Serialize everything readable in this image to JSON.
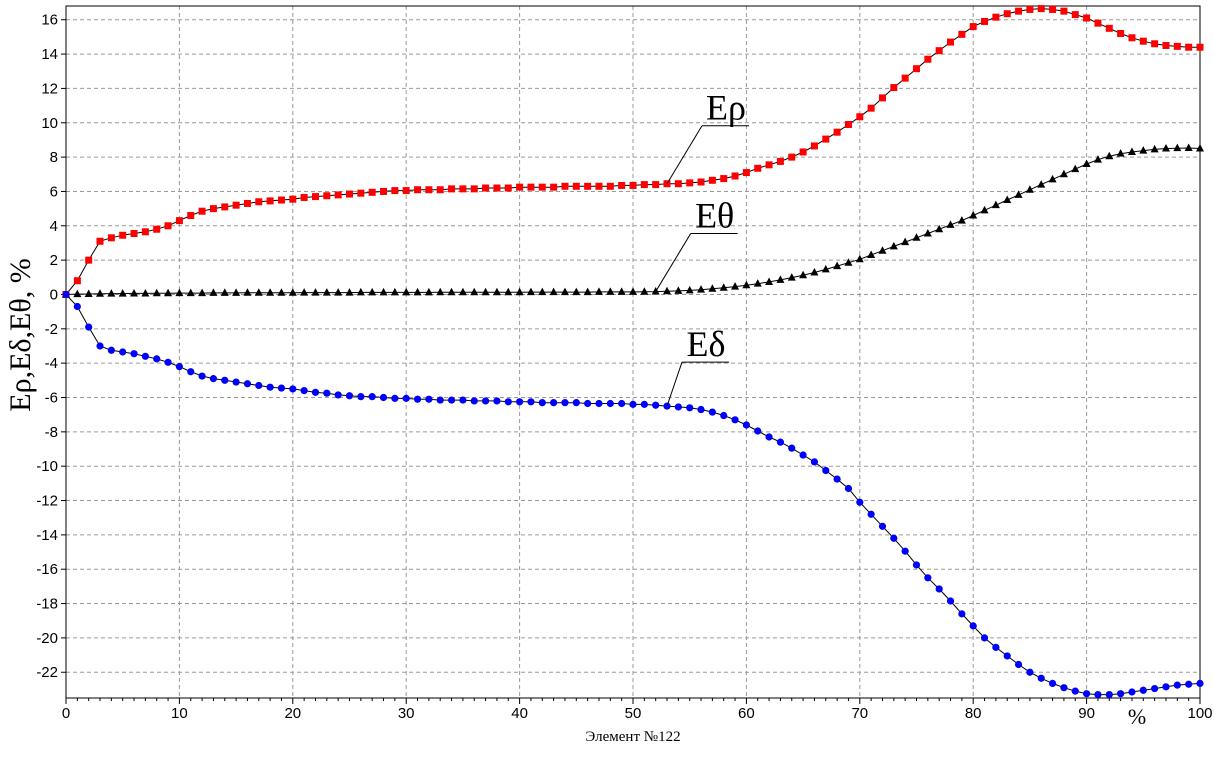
{
  "chart_data": {
    "type": "line",
    "xlabel": "Элемент №122",
    "ylabel": "Eρ,Eδ,Eθ, %",
    "x_unit_label": "%",
    "xlim": [
      0,
      100
    ],
    "ylim": [
      -23.5,
      16.8
    ],
    "xticks": [
      0,
      10,
      20,
      30,
      40,
      50,
      60,
      70,
      80,
      90,
      100
    ],
    "yticks": [
      -22,
      -20,
      -18,
      -16,
      -14,
      -12,
      -10,
      -8,
      -6,
      -4,
      -2,
      0,
      2,
      4,
      6,
      8,
      10,
      12,
      14,
      16
    ],
    "grid": true,
    "series": [
      {
        "name": "Eρ",
        "color": "#ff0000",
        "marker": "square",
        "x": [
          0,
          1,
          2,
          3,
          4,
          5,
          6,
          7,
          8,
          9,
          10,
          11,
          12,
          13,
          14,
          15,
          16,
          17,
          18,
          19,
          20,
          21,
          22,
          23,
          24,
          25,
          26,
          27,
          28,
          29,
          30,
          31,
          32,
          33,
          34,
          35,
          36,
          37,
          38,
          39,
          40,
          41,
          42,
          43,
          44,
          45,
          46,
          47,
          48,
          49,
          50,
          51,
          52,
          53,
          54,
          55,
          56,
          57,
          58,
          59,
          60,
          61,
          62,
          63,
          64,
          65,
          66,
          67,
          68,
          69,
          70,
          71,
          72,
          73,
          74,
          75,
          76,
          77,
          78,
          79,
          80,
          81,
          82,
          83,
          84,
          85,
          86,
          87,
          88,
          89,
          90,
          91,
          92,
          93,
          94,
          95,
          96,
          97,
          98,
          99,
          100
        ],
        "values": [
          0,
          0.8,
          2.0,
          3.1,
          3.3,
          3.45,
          3.55,
          3.65,
          3.8,
          4.0,
          4.3,
          4.6,
          4.85,
          5.0,
          5.1,
          5.2,
          5.3,
          5.4,
          5.45,
          5.5,
          5.55,
          5.65,
          5.7,
          5.75,
          5.8,
          5.85,
          5.9,
          5.95,
          6.0,
          6.05,
          6.05,
          6.1,
          6.1,
          6.1,
          6.15,
          6.15,
          6.15,
          6.2,
          6.2,
          6.2,
          6.25,
          6.25,
          6.25,
          6.25,
          6.3,
          6.3,
          6.3,
          6.3,
          6.3,
          6.35,
          6.35,
          6.4,
          6.4,
          6.45,
          6.45,
          6.5,
          6.55,
          6.65,
          6.75,
          6.9,
          7.1,
          7.35,
          7.55,
          7.75,
          8.0,
          8.3,
          8.65,
          9.05,
          9.45,
          9.9,
          10.35,
          10.85,
          11.45,
          12.05,
          12.6,
          13.15,
          13.7,
          14.2,
          14.7,
          15.15,
          15.6,
          15.9,
          16.15,
          16.35,
          16.5,
          16.6,
          16.65,
          16.6,
          16.5,
          16.3,
          16.1,
          15.8,
          15.5,
          15.2,
          14.95,
          14.75,
          14.6,
          14.5,
          14.45,
          14.4,
          14.4
        ]
      },
      {
        "name": "Eθ",
        "color": "#000000",
        "marker": "triangle",
        "x": [
          0,
          1,
          2,
          3,
          4,
          5,
          6,
          7,
          8,
          9,
          10,
          11,
          12,
          13,
          14,
          15,
          16,
          17,
          18,
          19,
          20,
          21,
          22,
          23,
          24,
          25,
          26,
          27,
          28,
          29,
          30,
          31,
          32,
          33,
          34,
          35,
          36,
          37,
          38,
          39,
          40,
          41,
          42,
          43,
          44,
          45,
          46,
          47,
          48,
          49,
          50,
          51,
          52,
          53,
          54,
          55,
          56,
          57,
          58,
          59,
          60,
          61,
          62,
          63,
          64,
          65,
          66,
          67,
          68,
          69,
          70,
          71,
          72,
          73,
          74,
          75,
          76,
          77,
          78,
          79,
          80,
          81,
          82,
          83,
          84,
          85,
          86,
          87,
          88,
          89,
          90,
          91,
          92,
          93,
          94,
          95,
          96,
          97,
          98,
          99,
          100
        ],
        "values": [
          0,
          0.02,
          0.03,
          0.04,
          0.05,
          0.05,
          0.06,
          0.06,
          0.07,
          0.07,
          0.08,
          0.08,
          0.08,
          0.09,
          0.09,
          0.09,
          0.1,
          0.1,
          0.1,
          0.1,
          0.1,
          0.11,
          0.11,
          0.11,
          0.11,
          0.11,
          0.12,
          0.12,
          0.12,
          0.12,
          0.12,
          0.12,
          0.12,
          0.13,
          0.13,
          0.13,
          0.13,
          0.13,
          0.13,
          0.13,
          0.13,
          0.14,
          0.14,
          0.14,
          0.14,
          0.14,
          0.14,
          0.15,
          0.15,
          0.15,
          0.15,
          0.16,
          0.17,
          0.19,
          0.21,
          0.24,
          0.28,
          0.33,
          0.39,
          0.46,
          0.54,
          0.63,
          0.73,
          0.85,
          0.98,
          1.12,
          1.28,
          1.46,
          1.65,
          1.85,
          2.05,
          2.3,
          2.55,
          2.8,
          3.05,
          3.3,
          3.55,
          3.8,
          4.05,
          4.3,
          4.6,
          4.9,
          5.2,
          5.5,
          5.8,
          6.1,
          6.4,
          6.7,
          7.0,
          7.3,
          7.6,
          7.85,
          8.05,
          8.2,
          8.3,
          8.38,
          8.45,
          8.5,
          8.52,
          8.53,
          8.5
        ]
      },
      {
        "name": "Eδ",
        "color": "#0000ff",
        "marker": "circle",
        "x": [
          0,
          1,
          2,
          3,
          4,
          5,
          6,
          7,
          8,
          9,
          10,
          11,
          12,
          13,
          14,
          15,
          16,
          17,
          18,
          19,
          20,
          21,
          22,
          23,
          24,
          25,
          26,
          27,
          28,
          29,
          30,
          31,
          32,
          33,
          34,
          35,
          36,
          37,
          38,
          39,
          40,
          41,
          42,
          43,
          44,
          45,
          46,
          47,
          48,
          49,
          50,
          51,
          52,
          53,
          54,
          55,
          56,
          57,
          58,
          59,
          60,
          61,
          62,
          63,
          64,
          65,
          66,
          67,
          68,
          69,
          70,
          71,
          72,
          73,
          74,
          75,
          76,
          77,
          78,
          79,
          80,
          81,
          82,
          83,
          84,
          85,
          86,
          87,
          88,
          89,
          90,
          91,
          92,
          93,
          94,
          95,
          96,
          97,
          98,
          99,
          100
        ],
        "values": [
          0,
          -0.7,
          -1.9,
          -3.0,
          -3.25,
          -3.35,
          -3.45,
          -3.6,
          -3.75,
          -3.95,
          -4.2,
          -4.5,
          -4.75,
          -4.9,
          -5.0,
          -5.1,
          -5.2,
          -5.3,
          -5.4,
          -5.45,
          -5.5,
          -5.6,
          -5.7,
          -5.75,
          -5.85,
          -5.9,
          -5.95,
          -5.95,
          -6.0,
          -6.05,
          -6.05,
          -6.1,
          -6.1,
          -6.15,
          -6.15,
          -6.15,
          -6.2,
          -6.2,
          -6.2,
          -6.25,
          -6.25,
          -6.25,
          -6.3,
          -6.3,
          -6.3,
          -6.3,
          -6.35,
          -6.35,
          -6.35,
          -6.35,
          -6.4,
          -6.4,
          -6.45,
          -6.5,
          -6.55,
          -6.6,
          -6.7,
          -6.85,
          -7.05,
          -7.3,
          -7.6,
          -7.95,
          -8.3,
          -8.6,
          -8.95,
          -9.35,
          -9.75,
          -10.25,
          -10.75,
          -11.3,
          -12.1,
          -12.8,
          -13.5,
          -14.2,
          -14.95,
          -15.75,
          -16.5,
          -17.15,
          -17.85,
          -18.6,
          -19.3,
          -20.0,
          -20.55,
          -21.05,
          -21.55,
          -22.0,
          -22.35,
          -22.65,
          -22.9,
          -23.1,
          -23.25,
          -23.3,
          -23.3,
          -23.25,
          -23.15,
          -23.05,
          -22.95,
          -22.85,
          -22.75,
          -22.7,
          -22.65
        ]
      }
    ],
    "annotations": [
      {
        "text": "Eρ",
        "series": "Eρ",
        "at_x": 53
      },
      {
        "text": "Eθ",
        "series": "Eθ",
        "at_x": 52
      },
      {
        "text": "Eδ",
        "series": "Eδ",
        "at_x": 53
      }
    ]
  }
}
